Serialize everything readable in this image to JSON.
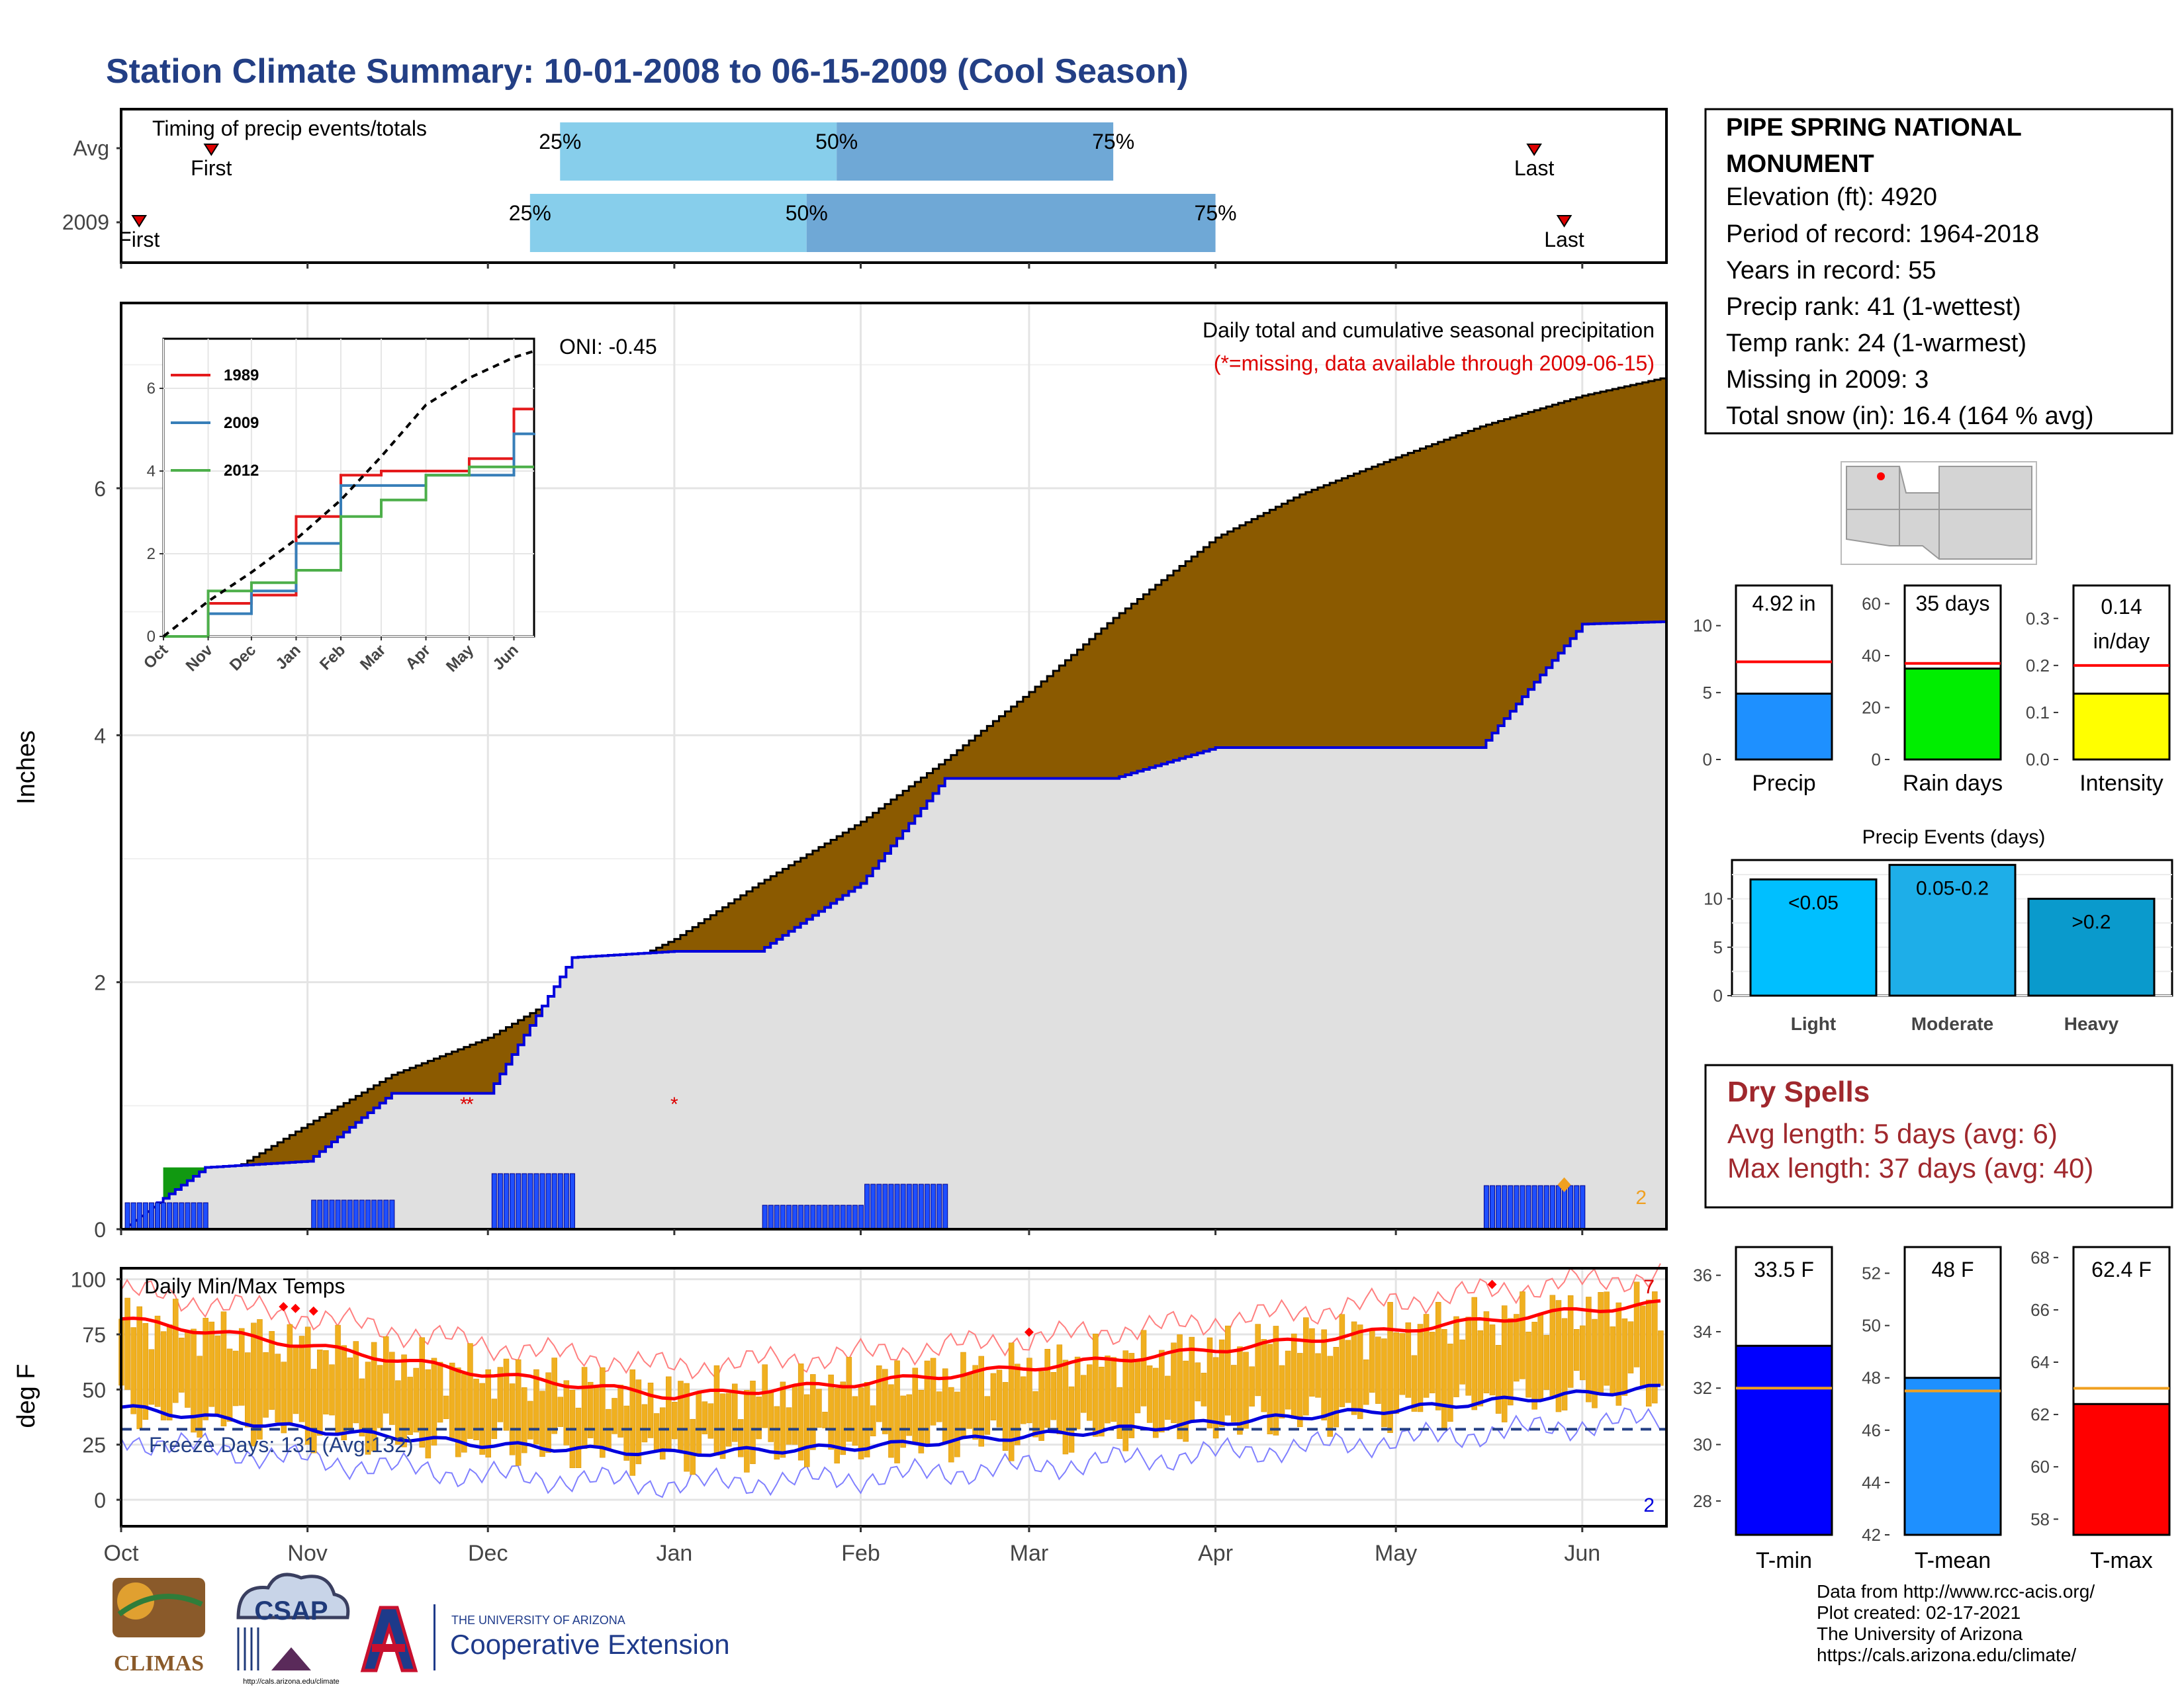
{
  "title": "Station Climate Summary: 10-01-2008 to 06-15-2009 (Cool Season)",
  "colors": {
    "title": "#233f85",
    "cum_avg_fill": "#8b5a00",
    "cum_2009_fill": "#e0e0e0",
    "cum_2009_line": "#0000dd",
    "green_fill": "#119911",
    "daily_bar": "#1f4fff",
    "missing": "#dd0000",
    "temp_bar": "#f0b020",
    "mean_max": "#ff0000",
    "mean_min": "#0000dd",
    "light_blue": "#87ceeb",
    "mid_blue": "#6fa8d6",
    "dry_spell_text": "#a0282d"
  },
  "timing": {
    "title": "Timing of precip events/totals",
    "rows": [
      {
        "label": "Avg",
        "first": "First",
        "last": "Last",
        "p25": "25%",
        "p50": "50%",
        "p75": "75%",
        "first_date": "10-16",
        "last_date": "05-24",
        "d25": "12-13",
        "d50": "01-28",
        "d75": "03-15"
      },
      {
        "label": "2009",
        "first": "First",
        "last": "Last",
        "p25": "25%",
        "p50": "50%",
        "p75": "75%",
        "first_date": "10-04",
        "last_date": "05-29",
        "d25": "12-08",
        "d50": "01-23",
        "d75": "04-01"
      }
    ]
  },
  "precip_panel": {
    "ylabel": "Inches",
    "annotation": "Daily total and cumulative seasonal precipitation",
    "missing_note": "(*=missing, data available through 2009-06-15)",
    "oni": "ONI: -0.45",
    "corner_count": "2",
    "yticks": [
      "0",
      "2",
      "4",
      "6"
    ],
    "xticks": [
      "Oct",
      "Nov",
      "Dec",
      "Jan",
      "Feb",
      "Mar",
      "Apr",
      "May",
      "Jun"
    ]
  },
  "inset": {
    "yticks": [
      "0",
      "2",
      "4",
      "6"
    ],
    "xticks": [
      "Oct",
      "Nov",
      "Dec",
      "Jan",
      "Feb",
      "Mar",
      "Apr",
      "May",
      "Jun"
    ],
    "legend": [
      "1989",
      "2009",
      "2012"
    ]
  },
  "station": {
    "name_line1": "PIPE SPRING NATIONAL",
    "name_line2": "MONUMENT",
    "elevation": "Elevation (ft): 4920",
    "period": "Period of record: 1964-2018",
    "years": "Years in record: 55",
    "precip_rank": "Precip rank: 41 (1-wettest)",
    "temp_rank": "Temp rank: 24 (1-warmest)",
    "missing": "Missing in 2009: 3",
    "snow": "Total snow (in): 16.4 (164 % avg)"
  },
  "mini_bars": {
    "precip": {
      "label": "Precip",
      "value_text": "4.92 in",
      "yticks": [
        "0",
        "5",
        "10"
      ]
    },
    "raindays": {
      "label": "Rain days",
      "value_text": "35 days",
      "yticks": [
        "0",
        "20",
        "40",
        "60"
      ]
    },
    "intensity": {
      "label": "Intensity",
      "value_text1": "0.14",
      "value_text2": "in/day",
      "yticks": [
        "0.0",
        "0.1",
        "0.2",
        "0.3"
      ]
    }
  },
  "events": {
    "title": "Precip Events (days)",
    "yticks": [
      "0",
      "5",
      "10"
    ],
    "bars": [
      {
        "label": "Light",
        "inner": "<0.05"
      },
      {
        "label": "Moderate",
        "inner": "0.05-0.2"
      },
      {
        "label": "Heavy",
        "inner": ">0.2"
      }
    ]
  },
  "dry_spells": {
    "title": "Dry Spells",
    "avg": "Avg length: 5 days (avg: 6)",
    "max": "Max length: 37 days (avg: 40)"
  },
  "temp_panel": {
    "title": "Daily Min/Max Temps",
    "ylabel": "deg F",
    "freeze": "Freeze Days: 131 (Avg:132)",
    "count_hi": "7",
    "count_lo": "2",
    "yticks": [
      "0",
      "25",
      "50",
      "75",
      "100"
    ],
    "xticks": [
      "Oct",
      "Nov",
      "Dec",
      "Jan",
      "Feb",
      "Mar",
      "Apr",
      "May",
      "Jun"
    ]
  },
  "temp_bars": {
    "tmin": {
      "label": "T-min",
      "value_text": "33.5 F",
      "yticks": [
        "28",
        "30",
        "32",
        "34",
        "36"
      ]
    },
    "tmean": {
      "label": "T-mean",
      "value_text": "48 F",
      "yticks": [
        "42",
        "44",
        "46",
        "48",
        "50",
        "52"
      ]
    },
    "tmax": {
      "label": "T-max",
      "value_text": "62.4 F",
      "yticks": [
        "58",
        "60",
        "62",
        "64",
        "66",
        "68"
      ]
    }
  },
  "logos": {
    "climas": "CLIMAS",
    "csap": "CSAP",
    "csap_url": "http://cals.arizona.edu/climate",
    "ua_small": "THE UNIVERSITY OF ARIZONA",
    "ua_big": "Cooperative Extension"
  },
  "footer": {
    "line1": "Data from http://www.rcc-acis.org/",
    "line2": "Plot created: 02-17-2021",
    "line3": "The University of Arizona",
    "line4": "https://cals.arizona.edu/climate/"
  },
  "chart_data": [
    {
      "type": "area",
      "title": "Daily total and cumulative seasonal precipitation",
      "ylabel": "Inches",
      "ylim": [
        0,
        7.5
      ],
      "x": [
        "10-01",
        "10-15",
        "11-01",
        "11-15",
        "12-01",
        "12-15",
        "01-01",
        "01-15",
        "02-01",
        "02-15",
        "03-01",
        "03-15",
        "04-01",
        "04-15",
        "05-01",
        "05-15",
        "06-01",
        "06-15"
      ],
      "series": [
        {
          "name": "Avg",
          "values": [
            0.0,
            0.35,
            0.85,
            1.25,
            1.55,
            1.95,
            2.35,
            2.8,
            3.3,
            3.8,
            4.35,
            4.95,
            5.6,
            5.95,
            6.25,
            6.5,
            6.75,
            6.9
          ]
        },
        {
          "name": "2009",
          "values": [
            0.0,
            0.5,
            0.55,
            1.1,
            1.1,
            2.2,
            2.25,
            2.25,
            2.8,
            3.65,
            3.65,
            3.65,
            3.9,
            3.9,
            3.9,
            3.9,
            4.9,
            4.92
          ]
        }
      ]
    },
    {
      "type": "line",
      "title": "",
      "ylim": [
        0,
        7.5
      ],
      "x": [
        "10-01",
        "11-01",
        "12-01",
        "01-01",
        "02-01",
        "03-01",
        "04-01",
        "05-01",
        "06-01",
        "06-15"
      ],
      "series": [
        {
          "name": "1989",
          "values": [
            0.0,
            0.8,
            1.0,
            2.9,
            3.9,
            4.0,
            4.0,
            4.3,
            5.5,
            5.5
          ]
        },
        {
          "name": "2009",
          "values": [
            0.0,
            0.55,
            1.1,
            2.25,
            3.65,
            3.65,
            3.9,
            3.9,
            4.9,
            4.92
          ]
        },
        {
          "name": "2012",
          "values": [
            0.0,
            1.1,
            1.3,
            1.6,
            2.9,
            3.3,
            3.9,
            4.1,
            4.1,
            4.1
          ]
        },
        {
          "name": "Avg",
          "values": [
            0.0,
            0.85,
            1.55,
            2.35,
            3.3,
            4.35,
            5.6,
            6.25,
            6.75,
            6.9
          ]
        }
      ]
    },
    {
      "type": "line",
      "title": "Daily Min/Max Temps",
      "ylabel": "deg F",
      "ylim": [
        -12,
        105
      ],
      "x": [
        "10-01",
        "11-01",
        "12-01",
        "01-01",
        "02-01",
        "03-01",
        "04-01",
        "05-01",
        "06-01",
        "06-15"
      ],
      "series": [
        {
          "name": "Avg max",
          "values": [
            82,
            70,
            57,
            47,
            53,
            60,
            68,
            77,
            86,
            89
          ]
        },
        {
          "name": "Avg min",
          "values": [
            42,
            32,
            25,
            21,
            24,
            29,
            35,
            41,
            48,
            51
          ]
        }
      ]
    },
    {
      "type": "bar",
      "title": "Precip Events (days)",
      "categories": [
        "Light",
        "Moderate",
        "Heavy"
      ],
      "values": [
        12,
        13.5,
        10
      ]
    },
    {
      "type": "bar",
      "categories": [
        "Precip",
        "Rain days",
        "Intensity"
      ],
      "series": [
        {
          "name": "2009",
          "values": [
            4.92,
            35,
            0.14
          ]
        },
        {
          "name": "Avg",
          "values": [
            7.3,
            37,
            0.2
          ]
        }
      ]
    },
    {
      "type": "bar",
      "categories": [
        "T-min",
        "T-mean",
        "T-max"
      ],
      "series": [
        {
          "name": "2009",
          "values": [
            33.5,
            48,
            62.4
          ]
        },
        {
          "name": "Avg",
          "values": [
            32,
            47.5,
            63
          ]
        }
      ]
    }
  ]
}
